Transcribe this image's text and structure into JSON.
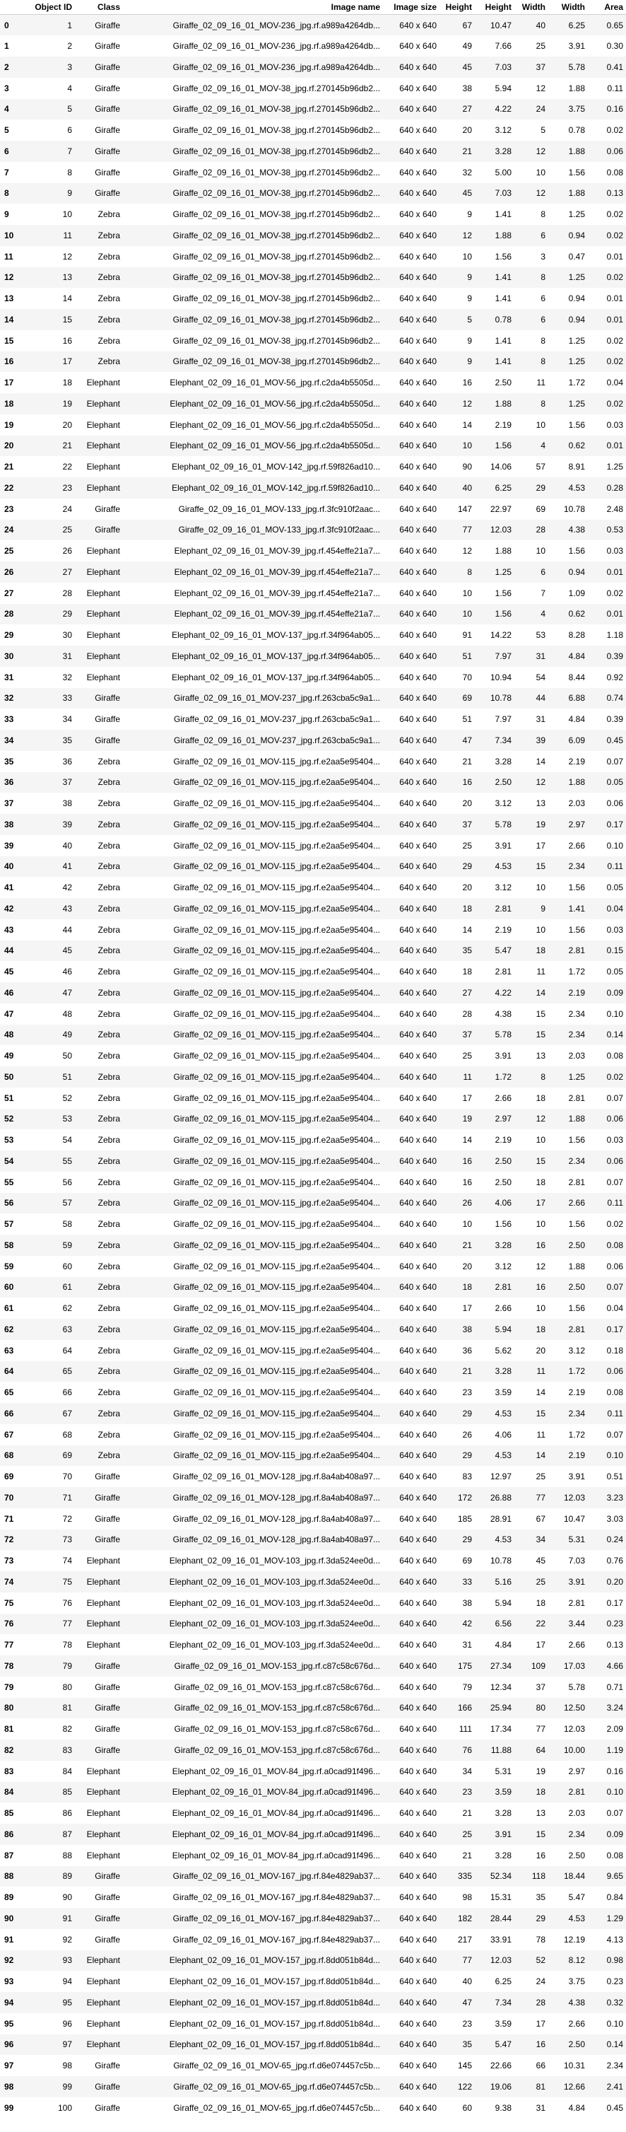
{
  "columns": [
    "",
    "Object ID",
    "Class",
    "Image name",
    "Image size",
    "Height",
    "Height",
    "Width",
    "Width",
    "Area"
  ],
  "rows": [
    [
      "0",
      "1",
      "Giraffe",
      "Giraffe_02_09_16_01_MOV-236_jpg.rf.a989a4264db...",
      "640 x 640",
      "67",
      "10.47",
      "40",
      "6.25",
      "0.65"
    ],
    [
      "1",
      "2",
      "Giraffe",
      "Giraffe_02_09_16_01_MOV-236_jpg.rf.a989a4264db...",
      "640 x 640",
      "49",
      "7.66",
      "25",
      "3.91",
      "0.30"
    ],
    [
      "2",
      "3",
      "Giraffe",
      "Giraffe_02_09_16_01_MOV-236_jpg.rf.a989a4264db...",
      "640 x 640",
      "45",
      "7.03",
      "37",
      "5.78",
      "0.41"
    ],
    [
      "3",
      "4",
      "Giraffe",
      "Giraffe_02_09_16_01_MOV-38_jpg.rf.270145b96db2...",
      "640 x 640",
      "38",
      "5.94",
      "12",
      "1.88",
      "0.11"
    ],
    [
      "4",
      "5",
      "Giraffe",
      "Giraffe_02_09_16_01_MOV-38_jpg.rf.270145b96db2...",
      "640 x 640",
      "27",
      "4.22",
      "24",
      "3.75",
      "0.16"
    ],
    [
      "5",
      "6",
      "Giraffe",
      "Giraffe_02_09_16_01_MOV-38_jpg.rf.270145b96db2...",
      "640 x 640",
      "20",
      "3.12",
      "5",
      "0.78",
      "0.02"
    ],
    [
      "6",
      "7",
      "Giraffe",
      "Giraffe_02_09_16_01_MOV-38_jpg.rf.270145b96db2...",
      "640 x 640",
      "21",
      "3.28",
      "12",
      "1.88",
      "0.06"
    ],
    [
      "7",
      "8",
      "Giraffe",
      "Giraffe_02_09_16_01_MOV-38_jpg.rf.270145b96db2...",
      "640 x 640",
      "32",
      "5.00",
      "10",
      "1.56",
      "0.08"
    ],
    [
      "8",
      "9",
      "Giraffe",
      "Giraffe_02_09_16_01_MOV-38_jpg.rf.270145b96db2...",
      "640 x 640",
      "45",
      "7.03",
      "12",
      "1.88",
      "0.13"
    ],
    [
      "9",
      "10",
      "Zebra",
      "Giraffe_02_09_16_01_MOV-38_jpg.rf.270145b96db2...",
      "640 x 640",
      "9",
      "1.41",
      "8",
      "1.25",
      "0.02"
    ],
    [
      "10",
      "11",
      "Zebra",
      "Giraffe_02_09_16_01_MOV-38_jpg.rf.270145b96db2...",
      "640 x 640",
      "12",
      "1.88",
      "6",
      "0.94",
      "0.02"
    ],
    [
      "11",
      "12",
      "Zebra",
      "Giraffe_02_09_16_01_MOV-38_jpg.rf.270145b96db2...",
      "640 x 640",
      "10",
      "1.56",
      "3",
      "0.47",
      "0.01"
    ],
    [
      "12",
      "13",
      "Zebra",
      "Giraffe_02_09_16_01_MOV-38_jpg.rf.270145b96db2...",
      "640 x 640",
      "9",
      "1.41",
      "8",
      "1.25",
      "0.02"
    ],
    [
      "13",
      "14",
      "Zebra",
      "Giraffe_02_09_16_01_MOV-38_jpg.rf.270145b96db2...",
      "640 x 640",
      "9",
      "1.41",
      "6",
      "0.94",
      "0.01"
    ],
    [
      "14",
      "15",
      "Zebra",
      "Giraffe_02_09_16_01_MOV-38_jpg.rf.270145b96db2...",
      "640 x 640",
      "5",
      "0.78",
      "6",
      "0.94",
      "0.01"
    ],
    [
      "15",
      "16",
      "Zebra",
      "Giraffe_02_09_16_01_MOV-38_jpg.rf.270145b96db2...",
      "640 x 640",
      "9",
      "1.41",
      "8",
      "1.25",
      "0.02"
    ],
    [
      "16",
      "17",
      "Zebra",
      "Giraffe_02_09_16_01_MOV-38_jpg.rf.270145b96db2...",
      "640 x 640",
      "9",
      "1.41",
      "8",
      "1.25",
      "0.02"
    ],
    [
      "17",
      "18",
      "Elephant",
      "Elephant_02_09_16_01_MOV-56_jpg.rf.c2da4b5505d...",
      "640 x 640",
      "16",
      "2.50",
      "11",
      "1.72",
      "0.04"
    ],
    [
      "18",
      "19",
      "Elephant",
      "Elephant_02_09_16_01_MOV-56_jpg.rf.c2da4b5505d...",
      "640 x 640",
      "12",
      "1.88",
      "8",
      "1.25",
      "0.02"
    ],
    [
      "19",
      "20",
      "Elephant",
      "Elephant_02_09_16_01_MOV-56_jpg.rf.c2da4b5505d...",
      "640 x 640",
      "14",
      "2.19",
      "10",
      "1.56",
      "0.03"
    ],
    [
      "20",
      "21",
      "Elephant",
      "Elephant_02_09_16_01_MOV-56_jpg.rf.c2da4b5505d...",
      "640 x 640",
      "10",
      "1.56",
      "4",
      "0.62",
      "0.01"
    ],
    [
      "21",
      "22",
      "Elephant",
      "Elephant_02_09_16_01_MOV-142_jpg.rf.59f826ad10...",
      "640 x 640",
      "90",
      "14.06",
      "57",
      "8.91",
      "1.25"
    ],
    [
      "22",
      "23",
      "Elephant",
      "Elephant_02_09_16_01_MOV-142_jpg.rf.59f826ad10...",
      "640 x 640",
      "40",
      "6.25",
      "29",
      "4.53",
      "0.28"
    ],
    [
      "23",
      "24",
      "Giraffe",
      "Giraffe_02_09_16_01_MOV-133_jpg.rf.3fc910f2aac...",
      "640 x 640",
      "147",
      "22.97",
      "69",
      "10.78",
      "2.48"
    ],
    [
      "24",
      "25",
      "Giraffe",
      "Giraffe_02_09_16_01_MOV-133_jpg.rf.3fc910f2aac...",
      "640 x 640",
      "77",
      "12.03",
      "28",
      "4.38",
      "0.53"
    ],
    [
      "25",
      "26",
      "Elephant",
      "Elephant_02_09_16_01_MOV-39_jpg.rf.454effe21a7...",
      "640 x 640",
      "12",
      "1.88",
      "10",
      "1.56",
      "0.03"
    ],
    [
      "26",
      "27",
      "Elephant",
      "Elephant_02_09_16_01_MOV-39_jpg.rf.454effe21a7...",
      "640 x 640",
      "8",
      "1.25",
      "6",
      "0.94",
      "0.01"
    ],
    [
      "27",
      "28",
      "Elephant",
      "Elephant_02_09_16_01_MOV-39_jpg.rf.454effe21a7...",
      "640 x 640",
      "10",
      "1.56",
      "7",
      "1.09",
      "0.02"
    ],
    [
      "28",
      "29",
      "Elephant",
      "Elephant_02_09_16_01_MOV-39_jpg.rf.454effe21a7...",
      "640 x 640",
      "10",
      "1.56",
      "4",
      "0.62",
      "0.01"
    ],
    [
      "29",
      "30",
      "Elephant",
      "Elephant_02_09_16_01_MOV-137_jpg.rf.34f964ab05...",
      "640 x 640",
      "91",
      "14.22",
      "53",
      "8.28",
      "1.18"
    ],
    [
      "30",
      "31",
      "Elephant",
      "Elephant_02_09_16_01_MOV-137_jpg.rf.34f964ab05...",
      "640 x 640",
      "51",
      "7.97",
      "31",
      "4.84",
      "0.39"
    ],
    [
      "31",
      "32",
      "Elephant",
      "Elephant_02_09_16_01_MOV-137_jpg.rf.34f964ab05...",
      "640 x 640",
      "70",
      "10.94",
      "54",
      "8.44",
      "0.92"
    ],
    [
      "32",
      "33",
      "Giraffe",
      "Giraffe_02_09_16_01_MOV-237_jpg.rf.263cba5c9a1...",
      "640 x 640",
      "69",
      "10.78",
      "44",
      "6.88",
      "0.74"
    ],
    [
      "33",
      "34",
      "Giraffe",
      "Giraffe_02_09_16_01_MOV-237_jpg.rf.263cba5c9a1...",
      "640 x 640",
      "51",
      "7.97",
      "31",
      "4.84",
      "0.39"
    ],
    [
      "34",
      "35",
      "Giraffe",
      "Giraffe_02_09_16_01_MOV-237_jpg.rf.263cba5c9a1...",
      "640 x 640",
      "47",
      "7.34",
      "39",
      "6.09",
      "0.45"
    ],
    [
      "35",
      "36",
      "Zebra",
      "Giraffe_02_09_16_01_MOV-115_jpg.rf.e2aa5e95404...",
      "640 x 640",
      "21",
      "3.28",
      "14",
      "2.19",
      "0.07"
    ],
    [
      "36",
      "37",
      "Zebra",
      "Giraffe_02_09_16_01_MOV-115_jpg.rf.e2aa5e95404...",
      "640 x 640",
      "16",
      "2.50",
      "12",
      "1.88",
      "0.05"
    ],
    [
      "37",
      "38",
      "Zebra",
      "Giraffe_02_09_16_01_MOV-115_jpg.rf.e2aa5e95404...",
      "640 x 640",
      "20",
      "3.12",
      "13",
      "2.03",
      "0.06"
    ],
    [
      "38",
      "39",
      "Zebra",
      "Giraffe_02_09_16_01_MOV-115_jpg.rf.e2aa5e95404...",
      "640 x 640",
      "37",
      "5.78",
      "19",
      "2.97",
      "0.17"
    ],
    [
      "39",
      "40",
      "Zebra",
      "Giraffe_02_09_16_01_MOV-115_jpg.rf.e2aa5e95404...",
      "640 x 640",
      "25",
      "3.91",
      "17",
      "2.66",
      "0.10"
    ],
    [
      "40",
      "41",
      "Zebra",
      "Giraffe_02_09_16_01_MOV-115_jpg.rf.e2aa5e95404...",
      "640 x 640",
      "29",
      "4.53",
      "15",
      "2.34",
      "0.11"
    ],
    [
      "41",
      "42",
      "Zebra",
      "Giraffe_02_09_16_01_MOV-115_jpg.rf.e2aa5e95404...",
      "640 x 640",
      "20",
      "3.12",
      "10",
      "1.56",
      "0.05"
    ],
    [
      "42",
      "43",
      "Zebra",
      "Giraffe_02_09_16_01_MOV-115_jpg.rf.e2aa5e95404...",
      "640 x 640",
      "18",
      "2.81",
      "9",
      "1.41",
      "0.04"
    ],
    [
      "43",
      "44",
      "Zebra",
      "Giraffe_02_09_16_01_MOV-115_jpg.rf.e2aa5e95404...",
      "640 x 640",
      "14",
      "2.19",
      "10",
      "1.56",
      "0.03"
    ],
    [
      "44",
      "45",
      "Zebra",
      "Giraffe_02_09_16_01_MOV-115_jpg.rf.e2aa5e95404...",
      "640 x 640",
      "35",
      "5.47",
      "18",
      "2.81",
      "0.15"
    ],
    [
      "45",
      "46",
      "Zebra",
      "Giraffe_02_09_16_01_MOV-115_jpg.rf.e2aa5e95404...",
      "640 x 640",
      "18",
      "2.81",
      "11",
      "1.72",
      "0.05"
    ],
    [
      "46",
      "47",
      "Zebra",
      "Giraffe_02_09_16_01_MOV-115_jpg.rf.e2aa5e95404...",
      "640 x 640",
      "27",
      "4.22",
      "14",
      "2.19",
      "0.09"
    ],
    [
      "47",
      "48",
      "Zebra",
      "Giraffe_02_09_16_01_MOV-115_jpg.rf.e2aa5e95404...",
      "640 x 640",
      "28",
      "4.38",
      "15",
      "2.34",
      "0.10"
    ],
    [
      "48",
      "49",
      "Zebra",
      "Giraffe_02_09_16_01_MOV-115_jpg.rf.e2aa5e95404...",
      "640 x 640",
      "37",
      "5.78",
      "15",
      "2.34",
      "0.14"
    ],
    [
      "49",
      "50",
      "Zebra",
      "Giraffe_02_09_16_01_MOV-115_jpg.rf.e2aa5e95404...",
      "640 x 640",
      "25",
      "3.91",
      "13",
      "2.03",
      "0.08"
    ],
    [
      "50",
      "51",
      "Zebra",
      "Giraffe_02_09_16_01_MOV-115_jpg.rf.e2aa5e95404...",
      "640 x 640",
      "11",
      "1.72",
      "8",
      "1.25",
      "0.02"
    ],
    [
      "51",
      "52",
      "Zebra",
      "Giraffe_02_09_16_01_MOV-115_jpg.rf.e2aa5e95404...",
      "640 x 640",
      "17",
      "2.66",
      "18",
      "2.81",
      "0.07"
    ],
    [
      "52",
      "53",
      "Zebra",
      "Giraffe_02_09_16_01_MOV-115_jpg.rf.e2aa5e95404...",
      "640 x 640",
      "19",
      "2.97",
      "12",
      "1.88",
      "0.06"
    ],
    [
      "53",
      "54",
      "Zebra",
      "Giraffe_02_09_16_01_MOV-115_jpg.rf.e2aa5e95404...",
      "640 x 640",
      "14",
      "2.19",
      "10",
      "1.56",
      "0.03"
    ],
    [
      "54",
      "55",
      "Zebra",
      "Giraffe_02_09_16_01_MOV-115_jpg.rf.e2aa5e95404...",
      "640 x 640",
      "16",
      "2.50",
      "15",
      "2.34",
      "0.06"
    ],
    [
      "55",
      "56",
      "Zebra",
      "Giraffe_02_09_16_01_MOV-115_jpg.rf.e2aa5e95404...",
      "640 x 640",
      "16",
      "2.50",
      "18",
      "2.81",
      "0.07"
    ],
    [
      "56",
      "57",
      "Zebra",
      "Giraffe_02_09_16_01_MOV-115_jpg.rf.e2aa5e95404...",
      "640 x 640",
      "26",
      "4.06",
      "17",
      "2.66",
      "0.11"
    ],
    [
      "57",
      "58",
      "Zebra",
      "Giraffe_02_09_16_01_MOV-115_jpg.rf.e2aa5e95404...",
      "640 x 640",
      "10",
      "1.56",
      "10",
      "1.56",
      "0.02"
    ],
    [
      "58",
      "59",
      "Zebra",
      "Giraffe_02_09_16_01_MOV-115_jpg.rf.e2aa5e95404...",
      "640 x 640",
      "21",
      "3.28",
      "16",
      "2.50",
      "0.08"
    ],
    [
      "59",
      "60",
      "Zebra",
      "Giraffe_02_09_16_01_MOV-115_jpg.rf.e2aa5e95404...",
      "640 x 640",
      "20",
      "3.12",
      "12",
      "1.88",
      "0.06"
    ],
    [
      "60",
      "61",
      "Zebra",
      "Giraffe_02_09_16_01_MOV-115_jpg.rf.e2aa5e95404...",
      "640 x 640",
      "18",
      "2.81",
      "16",
      "2.50",
      "0.07"
    ],
    [
      "61",
      "62",
      "Zebra",
      "Giraffe_02_09_16_01_MOV-115_jpg.rf.e2aa5e95404...",
      "640 x 640",
      "17",
      "2.66",
      "10",
      "1.56",
      "0.04"
    ],
    [
      "62",
      "63",
      "Zebra",
      "Giraffe_02_09_16_01_MOV-115_jpg.rf.e2aa5e95404...",
      "640 x 640",
      "38",
      "5.94",
      "18",
      "2.81",
      "0.17"
    ],
    [
      "63",
      "64",
      "Zebra",
      "Giraffe_02_09_16_01_MOV-115_jpg.rf.e2aa5e95404...",
      "640 x 640",
      "36",
      "5.62",
      "20",
      "3.12",
      "0.18"
    ],
    [
      "64",
      "65",
      "Zebra",
      "Giraffe_02_09_16_01_MOV-115_jpg.rf.e2aa5e95404...",
      "640 x 640",
      "21",
      "3.28",
      "11",
      "1.72",
      "0.06"
    ],
    [
      "65",
      "66",
      "Zebra",
      "Giraffe_02_09_16_01_MOV-115_jpg.rf.e2aa5e95404...",
      "640 x 640",
      "23",
      "3.59",
      "14",
      "2.19",
      "0.08"
    ],
    [
      "66",
      "67",
      "Zebra",
      "Giraffe_02_09_16_01_MOV-115_jpg.rf.e2aa5e95404...",
      "640 x 640",
      "29",
      "4.53",
      "15",
      "2.34",
      "0.11"
    ],
    [
      "67",
      "68",
      "Zebra",
      "Giraffe_02_09_16_01_MOV-115_jpg.rf.e2aa5e95404...",
      "640 x 640",
      "26",
      "4.06",
      "11",
      "1.72",
      "0.07"
    ],
    [
      "68",
      "69",
      "Zebra",
      "Giraffe_02_09_16_01_MOV-115_jpg.rf.e2aa5e95404...",
      "640 x 640",
      "29",
      "4.53",
      "14",
      "2.19",
      "0.10"
    ],
    [
      "69",
      "70",
      "Giraffe",
      "Giraffe_02_09_16_01_MOV-128_jpg.rf.8a4ab408a97...",
      "640 x 640",
      "83",
      "12.97",
      "25",
      "3.91",
      "0.51"
    ],
    [
      "70",
      "71",
      "Giraffe",
      "Giraffe_02_09_16_01_MOV-128_jpg.rf.8a4ab408a97...",
      "640 x 640",
      "172",
      "26.88",
      "77",
      "12.03",
      "3.23"
    ],
    [
      "71",
      "72",
      "Giraffe",
      "Giraffe_02_09_16_01_MOV-128_jpg.rf.8a4ab408a97...",
      "640 x 640",
      "185",
      "28.91",
      "67",
      "10.47",
      "3.03"
    ],
    [
      "72",
      "73",
      "Giraffe",
      "Giraffe_02_09_16_01_MOV-128_jpg.rf.8a4ab408a97...",
      "640 x 640",
      "29",
      "4.53",
      "34",
      "5.31",
      "0.24"
    ],
    [
      "73",
      "74",
      "Elephant",
      "Elephant_02_09_16_01_MOV-103_jpg.rf.3da524ee0d...",
      "640 x 640",
      "69",
      "10.78",
      "45",
      "7.03",
      "0.76"
    ],
    [
      "74",
      "75",
      "Elephant",
      "Elephant_02_09_16_01_MOV-103_jpg.rf.3da524ee0d...",
      "640 x 640",
      "33",
      "5.16",
      "25",
      "3.91",
      "0.20"
    ],
    [
      "75",
      "76",
      "Elephant",
      "Elephant_02_09_16_01_MOV-103_jpg.rf.3da524ee0d...",
      "640 x 640",
      "38",
      "5.94",
      "18",
      "2.81",
      "0.17"
    ],
    [
      "76",
      "77",
      "Elephant",
      "Elephant_02_09_16_01_MOV-103_jpg.rf.3da524ee0d...",
      "640 x 640",
      "42",
      "6.56",
      "22",
      "3.44",
      "0.23"
    ],
    [
      "77",
      "78",
      "Elephant",
      "Elephant_02_09_16_01_MOV-103_jpg.rf.3da524ee0d...",
      "640 x 640",
      "31",
      "4.84",
      "17",
      "2.66",
      "0.13"
    ],
    [
      "78",
      "79",
      "Giraffe",
      "Giraffe_02_09_16_01_MOV-153_jpg.rf.c87c58c676d...",
      "640 x 640",
      "175",
      "27.34",
      "109",
      "17.03",
      "4.66"
    ],
    [
      "79",
      "80",
      "Giraffe",
      "Giraffe_02_09_16_01_MOV-153_jpg.rf.c87c58c676d...",
      "640 x 640",
      "79",
      "12.34",
      "37",
      "5.78",
      "0.71"
    ],
    [
      "80",
      "81",
      "Giraffe",
      "Giraffe_02_09_16_01_MOV-153_jpg.rf.c87c58c676d...",
      "640 x 640",
      "166",
      "25.94",
      "80",
      "12.50",
      "3.24"
    ],
    [
      "81",
      "82",
      "Giraffe",
      "Giraffe_02_09_16_01_MOV-153_jpg.rf.c87c58c676d...",
      "640 x 640",
      "111",
      "17.34",
      "77",
      "12.03",
      "2.09"
    ],
    [
      "82",
      "83",
      "Giraffe",
      "Giraffe_02_09_16_01_MOV-153_jpg.rf.c87c58c676d...",
      "640 x 640",
      "76",
      "11.88",
      "64",
      "10.00",
      "1.19"
    ],
    [
      "83",
      "84",
      "Elephant",
      "Elephant_02_09_16_01_MOV-84_jpg.rf.a0cad91f496...",
      "640 x 640",
      "34",
      "5.31",
      "19",
      "2.97",
      "0.16"
    ],
    [
      "84",
      "85",
      "Elephant",
      "Elephant_02_09_16_01_MOV-84_jpg.rf.a0cad91f496...",
      "640 x 640",
      "23",
      "3.59",
      "18",
      "2.81",
      "0.10"
    ],
    [
      "85",
      "86",
      "Elephant",
      "Elephant_02_09_16_01_MOV-84_jpg.rf.a0cad91f496...",
      "640 x 640",
      "21",
      "3.28",
      "13",
      "2.03",
      "0.07"
    ],
    [
      "86",
      "87",
      "Elephant",
      "Elephant_02_09_16_01_MOV-84_jpg.rf.a0cad91f496...",
      "640 x 640",
      "25",
      "3.91",
      "15",
      "2.34",
      "0.09"
    ],
    [
      "87",
      "88",
      "Elephant",
      "Elephant_02_09_16_01_MOV-84_jpg.rf.a0cad91f496...",
      "640 x 640",
      "21",
      "3.28",
      "16",
      "2.50",
      "0.08"
    ],
    [
      "88",
      "89",
      "Giraffe",
      "Giraffe_02_09_16_01_MOV-167_jpg.rf.84e4829ab37...",
      "640 x 640",
      "335",
      "52.34",
      "118",
      "18.44",
      "9.65"
    ],
    [
      "89",
      "90",
      "Giraffe",
      "Giraffe_02_09_16_01_MOV-167_jpg.rf.84e4829ab37...",
      "640 x 640",
      "98",
      "15.31",
      "35",
      "5.47",
      "0.84"
    ],
    [
      "90",
      "91",
      "Giraffe",
      "Giraffe_02_09_16_01_MOV-167_jpg.rf.84e4829ab37...",
      "640 x 640",
      "182",
      "28.44",
      "29",
      "4.53",
      "1.29"
    ],
    [
      "91",
      "92",
      "Giraffe",
      "Giraffe_02_09_16_01_MOV-167_jpg.rf.84e4829ab37...",
      "640 x 640",
      "217",
      "33.91",
      "78",
      "12.19",
      "4.13"
    ],
    [
      "92",
      "93",
      "Elephant",
      "Elephant_02_09_16_01_MOV-157_jpg.rf.8dd051b84d...",
      "640 x 640",
      "77",
      "12.03",
      "52",
      "8.12",
      "0.98"
    ],
    [
      "93",
      "94",
      "Elephant",
      "Elephant_02_09_16_01_MOV-157_jpg.rf.8dd051b84d...",
      "640 x 640",
      "40",
      "6.25",
      "24",
      "3.75",
      "0.23"
    ],
    [
      "94",
      "95",
      "Elephant",
      "Elephant_02_09_16_01_MOV-157_jpg.rf.8dd051b84d...",
      "640 x 640",
      "47",
      "7.34",
      "28",
      "4.38",
      "0.32"
    ],
    [
      "95",
      "96",
      "Elephant",
      "Elephant_02_09_16_01_MOV-157_jpg.rf.8dd051b84d...",
      "640 x 640",
      "23",
      "3.59",
      "17",
      "2.66",
      "0.10"
    ],
    [
      "96",
      "97",
      "Elephant",
      "Elephant_02_09_16_01_MOV-157_jpg.rf.8dd051b84d...",
      "640 x 640",
      "35",
      "5.47",
      "16",
      "2.50",
      "0.14"
    ],
    [
      "97",
      "98",
      "Giraffe",
      "Giraffe_02_09_16_01_MOV-65_jpg.rf.d6e074457c5b...",
      "640 x 640",
      "145",
      "22.66",
      "66",
      "10.31",
      "2.34"
    ],
    [
      "98",
      "99",
      "Giraffe",
      "Giraffe_02_09_16_01_MOV-65_jpg.rf.d6e074457c5b...",
      "640 x 640",
      "122",
      "19.06",
      "81",
      "12.66",
      "2.41"
    ],
    [
      "99",
      "100",
      "Giraffe",
      "Giraffe_02_09_16_01_MOV-65_jpg.rf.d6e074457c5b...",
      "640 x 640",
      "60",
      "9.38",
      "31",
      "4.84",
      "0.45"
    ]
  ]
}
